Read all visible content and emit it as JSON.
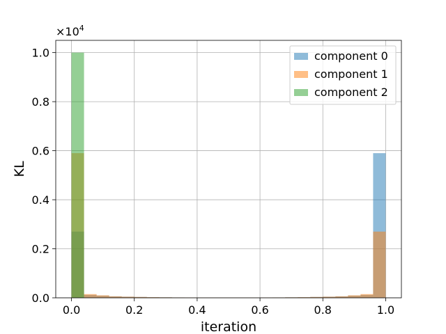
{
  "chart_data": {
    "type": "bar",
    "xlabel": "iteration",
    "ylabel": "KL",
    "offset_text": "×10",
    "offset_exponent": "4",
    "xlim": [
      -0.05,
      1.05
    ],
    "ylim": [
      0,
      10500
    ],
    "xticks": [
      0.0,
      0.2,
      0.4,
      0.6,
      0.8,
      1.0
    ],
    "xtick_labels": [
      "0.0",
      "0.2",
      "0.4",
      "0.6",
      "0.8",
      "1.0"
    ],
    "yticks": [
      0,
      2000,
      4000,
      6000,
      8000,
      10000
    ],
    "ytick_labels": [
      "0.0",
      "0.2",
      "0.4",
      "0.6",
      "0.8",
      "1.0"
    ],
    "grid": true,
    "legend_position": "top-right",
    "bin_width": 0.04,
    "bin_starts": [
      0.0,
      0.04,
      0.08,
      0.12,
      0.16,
      0.2,
      0.24,
      0.28,
      0.32,
      0.36,
      0.4,
      0.44,
      0.48,
      0.52,
      0.56,
      0.6,
      0.64,
      0.68,
      0.72,
      0.76,
      0.8,
      0.84,
      0.88,
      0.92,
      0.96
    ],
    "series": [
      {
        "name": "component 0",
        "color": "#1f77b4",
        "values": [
          2700,
          120,
          90,
          60,
          45,
          35,
          25,
          20,
          15,
          12,
          10,
          10,
          10,
          10,
          10,
          12,
          15,
          20,
          25,
          35,
          45,
          60,
          90,
          120,
          5900
        ]
      },
      {
        "name": "component 1",
        "color": "#ff7f0e",
        "values": [
          5900,
          150,
          100,
          60,
          45,
          35,
          25,
          20,
          15,
          12,
          10,
          10,
          10,
          10,
          10,
          12,
          15,
          20,
          25,
          35,
          45,
          60,
          100,
          150,
          2700
        ]
      },
      {
        "name": "component 2",
        "color": "#2ca02c",
        "values": [
          10000,
          0,
          0,
          0,
          0,
          0,
          0,
          0,
          0,
          0,
          0,
          0,
          0,
          0,
          0,
          0,
          0,
          0,
          0,
          0,
          0,
          0,
          0,
          0,
          0
        ]
      }
    ]
  }
}
